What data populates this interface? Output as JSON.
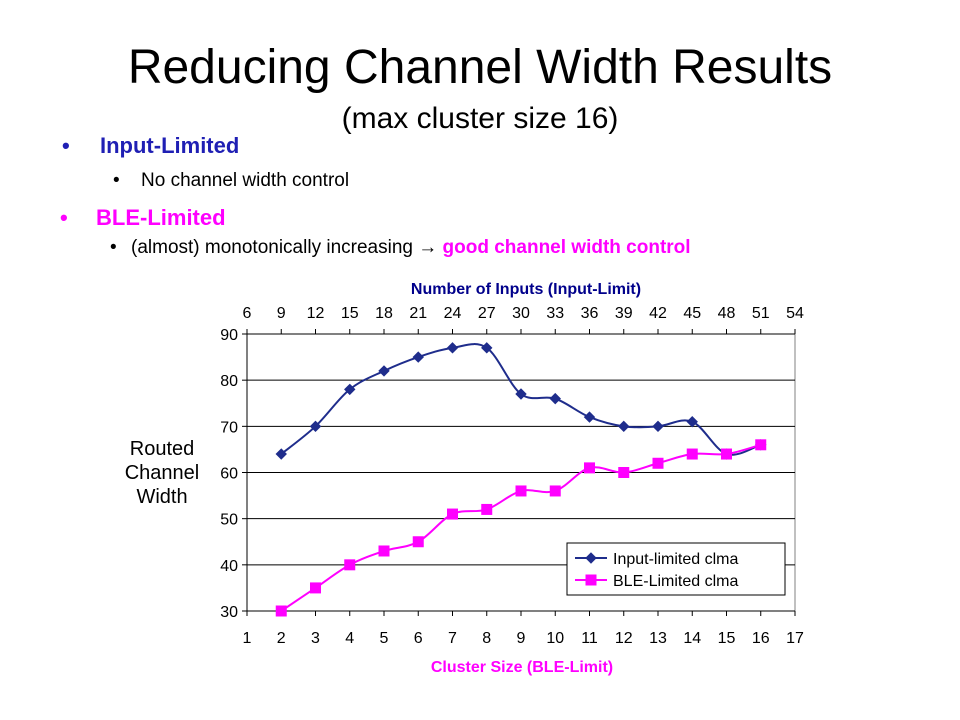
{
  "slide": {
    "title": "Reducing Channel Width Results",
    "subtitle": "(max cluster size 16)",
    "bullets": [
      {
        "text": "Input-Limited",
        "color": "#1f1fb4",
        "sub": [
          {
            "text": "No channel width control",
            "highlight": ""
          }
        ]
      },
      {
        "text": "BLE-Limited",
        "color": "#ff00ff",
        "sub": [
          {
            "text": "(almost) monotonically increasing",
            "arrow": "→",
            "highlight": "good channel width control"
          }
        ]
      }
    ]
  },
  "chart_data": {
    "type": "line",
    "title": "Number of Inputs (Input-Limit)",
    "xlabel": "Cluster Size (BLE-Limit)",
    "ylabel": "Routed Channel Width",
    "ylim": [
      30,
      90
    ],
    "yticks": [
      30,
      40,
      50,
      60,
      70,
      80,
      90
    ],
    "xlim": [
      1,
      17
    ],
    "xticks": [
      1,
      2,
      3,
      4,
      5,
      6,
      7,
      8,
      9,
      10,
      11,
      12,
      13,
      14,
      15,
      16,
      17
    ],
    "secondary_xticks": [
      6,
      9,
      12,
      15,
      18,
      21,
      24,
      27,
      30,
      33,
      36,
      39,
      42,
      45,
      48,
      51,
      54
    ],
    "grid": "horizontal",
    "legend_position": "bottom-right",
    "title_color": "#00008b",
    "xlabel_color": "#ff00ff",
    "series": [
      {
        "name": "Input-limited clma",
        "color": "#1f2d8c",
        "marker": "diamond",
        "x": [
          2,
          3,
          4,
          5,
          6,
          7,
          8,
          9,
          10,
          11,
          12,
          13,
          14,
          15,
          16
        ],
        "values": [
          64,
          70,
          78,
          82,
          85,
          87,
          87,
          77,
          76,
          72,
          70,
          70,
          71,
          64,
          66
        ]
      },
      {
        "name": "BLE-Limited clma",
        "color": "#ff00ff",
        "marker": "square",
        "x": [
          2,
          3,
          4,
          5,
          6,
          7,
          8,
          9,
          10,
          11,
          12,
          13,
          14,
          15,
          16
        ],
        "values": [
          30,
          35,
          40,
          43,
          45,
          51,
          52,
          56,
          56,
          61,
          60,
          62,
          64,
          64,
          66
        ]
      }
    ]
  }
}
